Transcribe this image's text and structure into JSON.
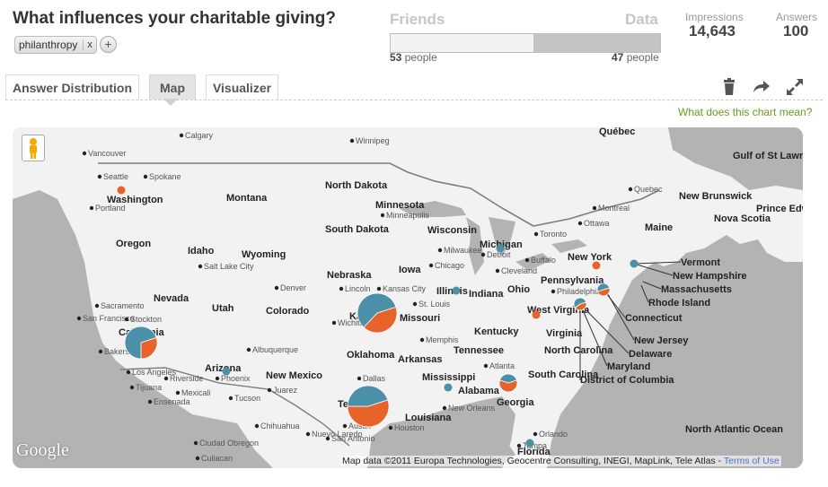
{
  "question": {
    "title": "What influences your charitable giving?"
  },
  "tags": [
    {
      "label": "philanthropy",
      "remove": "x"
    }
  ],
  "tag_add": "+",
  "compare": {
    "left_label": "Friends",
    "right_label": "Data",
    "friends_count": "53",
    "data_count": "47",
    "unit": "people",
    "data_fraction": 0.47
  },
  "stats": {
    "impressions_label": "Impressions",
    "impressions_value": "14,643",
    "answers_label": "Answers",
    "answers_value": "100"
  },
  "tabs": [
    {
      "label": "Answer Distribution",
      "active": false
    },
    {
      "label": "Map",
      "active": true
    },
    {
      "label": "Visualizer",
      "active": false
    }
  ],
  "tools": {
    "delete": "trash-icon",
    "share": "share-arrow-icon",
    "expand": "expand-icon"
  },
  "chart_help": "What does this chart mean?",
  "map": {
    "attribution": "Map data ©2011 Europa Technologies, Geocentre Consulting, INEGI, MapLink, Tele Atlas -",
    "terms_link": "Terms of Use",
    "logo": "Google",
    "colors": {
      "orange": "#e8632a",
      "blue": "#4b8fa8",
      "land": "#f0f0f0",
      "water": "#a9a9a9"
    },
    "state_labels": [
      "Washington",
      "Oregon",
      "Idaho",
      "Montana",
      "Wyoming",
      "North Dakota",
      "South Dakota",
      "Minnesota",
      "Nebraska",
      "Iowa",
      "Wisconsin",
      "Michigan",
      "Illinois",
      "Indiana",
      "Ohio",
      "Pennsylvania",
      "New York",
      "Nevada",
      "Utah",
      "Colorado",
      "Kansas",
      "Missouri",
      "Kentucky",
      "West Virginia",
      "Virginia",
      "Arizona",
      "New Mexico",
      "Oklahoma",
      "Arkansas",
      "Tennessee",
      "North Carolina",
      "South Carolina",
      "Georgia",
      "Alabama",
      "Mississippi",
      "Louisiana",
      "Texas",
      "California",
      "Florida",
      "Maine",
      "Vermont",
      "New Hampshire",
      "Massachusetts",
      "Rhode Island",
      "Connecticut",
      "New Jersey",
      "Delaware",
      "Maryland",
      "District of Columbia",
      "New Brunswick",
      "Nova Scotia",
      "Prince Edward Island",
      "Gulf of St Lawrence",
      "North Atlantic Ocean",
      "Québec"
    ],
    "city_labels": [
      "Calgary",
      "Vancouver",
      "Seattle",
      "Spokane",
      "Portland",
      "Winnipeg",
      "Minneapolis",
      "Salt Lake City",
      "Denver",
      "Lincoln",
      "Kansas City",
      "Wichita",
      "Chicago",
      "Milwaukee",
      "Detroit",
      "Toronto",
      "Ottawa",
      "Montreal",
      "Quebec",
      "Buffalo",
      "Cleveland",
      "Philadelphia",
      "Sacramento",
      "San Francisco",
      "Stockton",
      "Bakersfield",
      "Los Angeles",
      "Riverside",
      "Phoenix",
      "Tucson",
      "Albuquerque",
      "Juarez",
      "Mexicali",
      "Tijuana",
      "Ensenada",
      "Chihuahua",
      "Dallas",
      "Austin",
      "San Antonio",
      "Houston",
      "Nuevo Laredo",
      "Atlanta",
      "Memphis",
      "New Orleans",
      "Orlando",
      "Tampa",
      "Ciudad Obregon",
      "Culiacan",
      "St. Louis"
    ],
    "pies": [
      {
        "region": "Kansas",
        "orange": 0.42,
        "blue": 0.58
      },
      {
        "region": "Texas",
        "orange": 0.55,
        "blue": 0.45
      },
      {
        "region": "California",
        "orange": 0.3,
        "blue": 0.7
      },
      {
        "region": "Georgia",
        "orange": 0.6,
        "blue": 0.4
      },
      {
        "region": "New Jersey",
        "orange": 0.5,
        "blue": 0.5
      },
      {
        "region": "Maryland",
        "orange": 0.45,
        "blue": 0.55
      }
    ]
  }
}
